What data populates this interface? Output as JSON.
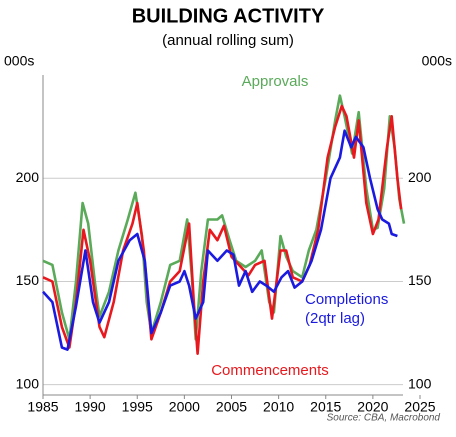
{
  "chart_data": {
    "type": "line",
    "title": "BUILDING ACTIVITY",
    "subtitle": "(annual rolling sum)",
    "y_label": "000s",
    "y2_label": "000s",
    "source": "Source: CBA, Macrobond",
    "xlim": [
      1985,
      2025
    ],
    "xticks": [
      1985,
      1990,
      1995,
      2000,
      2005,
      2010,
      2015,
      2020,
      2025
    ],
    "ylim": [
      95,
      250
    ],
    "yticks": [
      100,
      150,
      200
    ],
    "y2lim": [
      95,
      250
    ],
    "y2ticks": [
      100,
      150,
      200
    ],
    "grid": true,
    "series": [
      {
        "name": "Approvals",
        "color": "#5aaa5a",
        "x": [
          1985,
          1986,
          1987,
          1987.8,
          1988.5,
          1989.2,
          1989.8,
          1990.5,
          1991,
          1992,
          1993,
          1994,
          1994.8,
          1995.5,
          1996,
          1996.5,
          1997.5,
          1998.5,
          1999.5,
          2000.3,
          2000.8,
          2001.2,
          2001.8,
          2002.5,
          2003.5,
          2004,
          2004.8,
          2005.5,
          2006.5,
          2007.5,
          2008.2,
          2009,
          2009.5,
          2010.2,
          2010.8,
          2011.5,
          2012.5,
          2013.2,
          2014,
          2015,
          2016,
          2016.5,
          2017,
          2017.8,
          2018.5,
          2019.3,
          2020,
          2020.5,
          2021.2,
          2021.8,
          2022.3,
          2022.8,
          2023.3
        ],
        "values": [
          160,
          158,
          135,
          122,
          150,
          188,
          178,
          150,
          133,
          145,
          165,
          180,
          193,
          172,
          140,
          125,
          140,
          158,
          160,
          180,
          152,
          122,
          155,
          180,
          180,
          182,
          170,
          160,
          157,
          160,
          165,
          140,
          135,
          172,
          162,
          155,
          152,
          165,
          175,
          200,
          228,
          240,
          230,
          212,
          232,
          195,
          175,
          176,
          195,
          230,
          215,
          190,
          178
        ]
      },
      {
        "name": "Commencements",
        "color": "#e8191e",
        "x": [
          1985,
          1986,
          1987,
          1987.8,
          1988.5,
          1989.3,
          1990,
          1991,
          1991.5,
          1992.5,
          1993.5,
          1994.5,
          1995,
          1995.7,
          1996.5,
          1997.5,
          1998.5,
          1999.5,
          2000.5,
          2001,
          2001.4,
          2002,
          2002.7,
          2003.5,
          2004.2,
          2005,
          2006,
          2006.8,
          2007.5,
          2008.5,
          2009.3,
          2010.2,
          2010.8,
          2011.5,
          2012.5,
          2013.3,
          2014.2,
          2015.2,
          2016,
          2016.7,
          2017.2,
          2018,
          2018.5,
          2019.3,
          2020,
          2020.6,
          2021.5,
          2022,
          2022.6,
          2023
        ],
        "values": [
          152,
          150,
          128,
          118,
          140,
          175,
          160,
          128,
          123,
          140,
          165,
          178,
          188,
          165,
          122,
          135,
          150,
          155,
          178,
          140,
          115,
          150,
          175,
          170,
          177,
          162,
          157,
          153,
          158,
          160,
          132,
          165,
          165,
          152,
          150,
          158,
          175,
          210,
          225,
          235,
          230,
          210,
          228,
          188,
          173,
          180,
          215,
          230,
          200,
          185
        ]
      },
      {
        "name": "Completions\n(2qtr lag)",
        "color": "#1a1ae0",
        "x": [
          1985,
          1986,
          1987,
          1987.6,
          1988.5,
          1989.5,
          1990.3,
          1991,
          1992,
          1993,
          1994.2,
          1995,
          1995.8,
          1996.5,
          1997.5,
          1998.5,
          1999.5,
          2000,
          2000.5,
          2001.2,
          2002,
          2002.5,
          2003.5,
          2004.5,
          2005.2,
          2005.8,
          2006.5,
          2007.2,
          2008,
          2008.7,
          2009.5,
          2010.3,
          2011,
          2011.7,
          2012.5,
          2013.5,
          2014.5,
          2015.5,
          2016.5,
          2017,
          2017.7,
          2018.2,
          2019,
          2019.7,
          2020.5,
          2021,
          2021.7,
          2022,
          2022.6
        ],
        "values": [
          145,
          140,
          118,
          117,
          138,
          165,
          140,
          130,
          140,
          160,
          170,
          173,
          160,
          125,
          135,
          148,
          150,
          155,
          148,
          132,
          140,
          165,
          160,
          165,
          163,
          148,
          155,
          145,
          150,
          148,
          145,
          152,
          155,
          147,
          150,
          160,
          175,
          200,
          210,
          223,
          215,
          220,
          215,
          200,
          185,
          180,
          178,
          173,
          172
        ]
      }
    ]
  }
}
